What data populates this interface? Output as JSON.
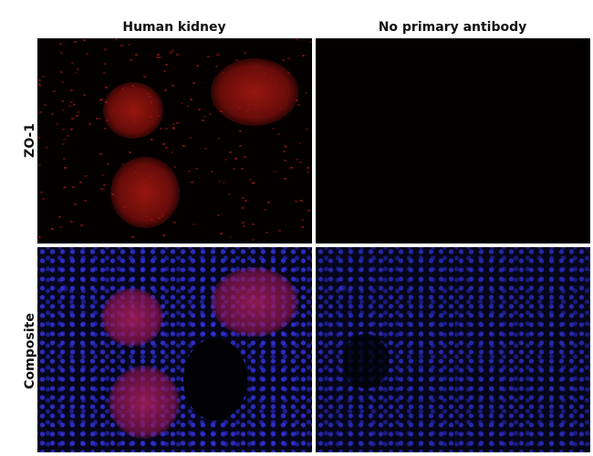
{
  "columns": [
    "Human kidney",
    "No primary antibody"
  ],
  "rows": [
    "ZO-1",
    "Composite"
  ],
  "colors": {
    "zo1_stain": "#c81e14",
    "nuclear_stain": "#3232dc",
    "background": "#000000"
  }
}
